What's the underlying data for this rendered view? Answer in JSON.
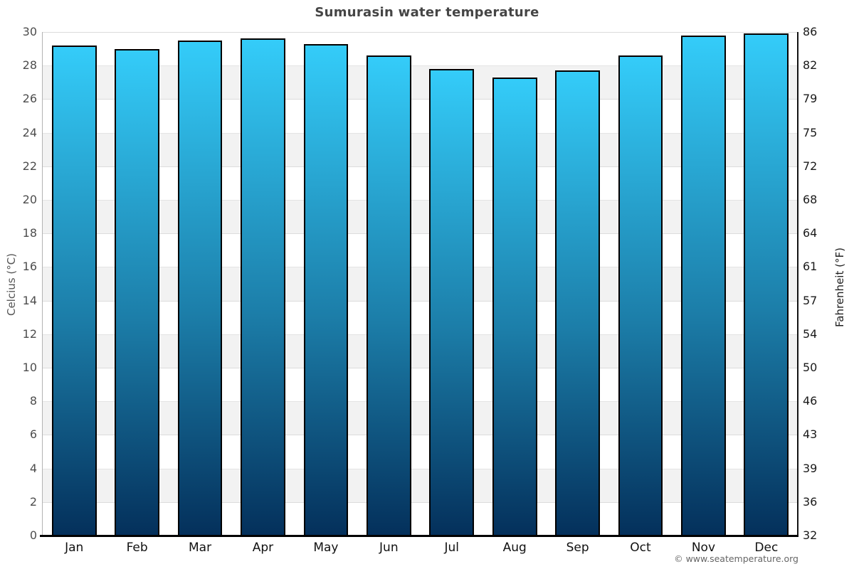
{
  "page": {
    "attribution": "© www.seatemperature.org"
  },
  "chart_data": {
    "type": "bar",
    "title": "Sumurasin water temperature",
    "categories": [
      "Jan",
      "Feb",
      "Mar",
      "Apr",
      "May",
      "Jun",
      "Jul",
      "Aug",
      "Sep",
      "Oct",
      "Nov",
      "Dec"
    ],
    "values": [
      29.2,
      29.0,
      29.5,
      29.6,
      29.3,
      28.6,
      27.8,
      27.3,
      27.7,
      28.6,
      29.8,
      29.9
    ],
    "xlabel": "",
    "ylabel_left": "Celcius (°C)",
    "ylabel_right": "Fahrenheit (°F)",
    "ylim": [
      0,
      30
    ],
    "y_left_ticks": [
      0,
      2,
      4,
      6,
      8,
      10,
      12,
      14,
      16,
      18,
      20,
      22,
      24,
      26,
      28,
      30
    ],
    "y_right_ticks": [
      32,
      36,
      39,
      43,
      46,
      50,
      54,
      57,
      61,
      64,
      68,
      72,
      75,
      79,
      82,
      86
    ],
    "legend": "none",
    "grid": "alternating horizontal bands every 2 units, thin gridline at each tick",
    "colors": {
      "bar_gradient_top": "#34ccf9",
      "bar_gradient_bottom": "#04305b",
      "bar_border": "#000000",
      "band_alt": "#f2f2f2",
      "gridline": "#dcdcdc",
      "title_text": "#454545",
      "left_tick_text": "#4d4d4d",
      "right_tick_text": "#1a1a1a",
      "attribution_text": "#666666"
    }
  }
}
